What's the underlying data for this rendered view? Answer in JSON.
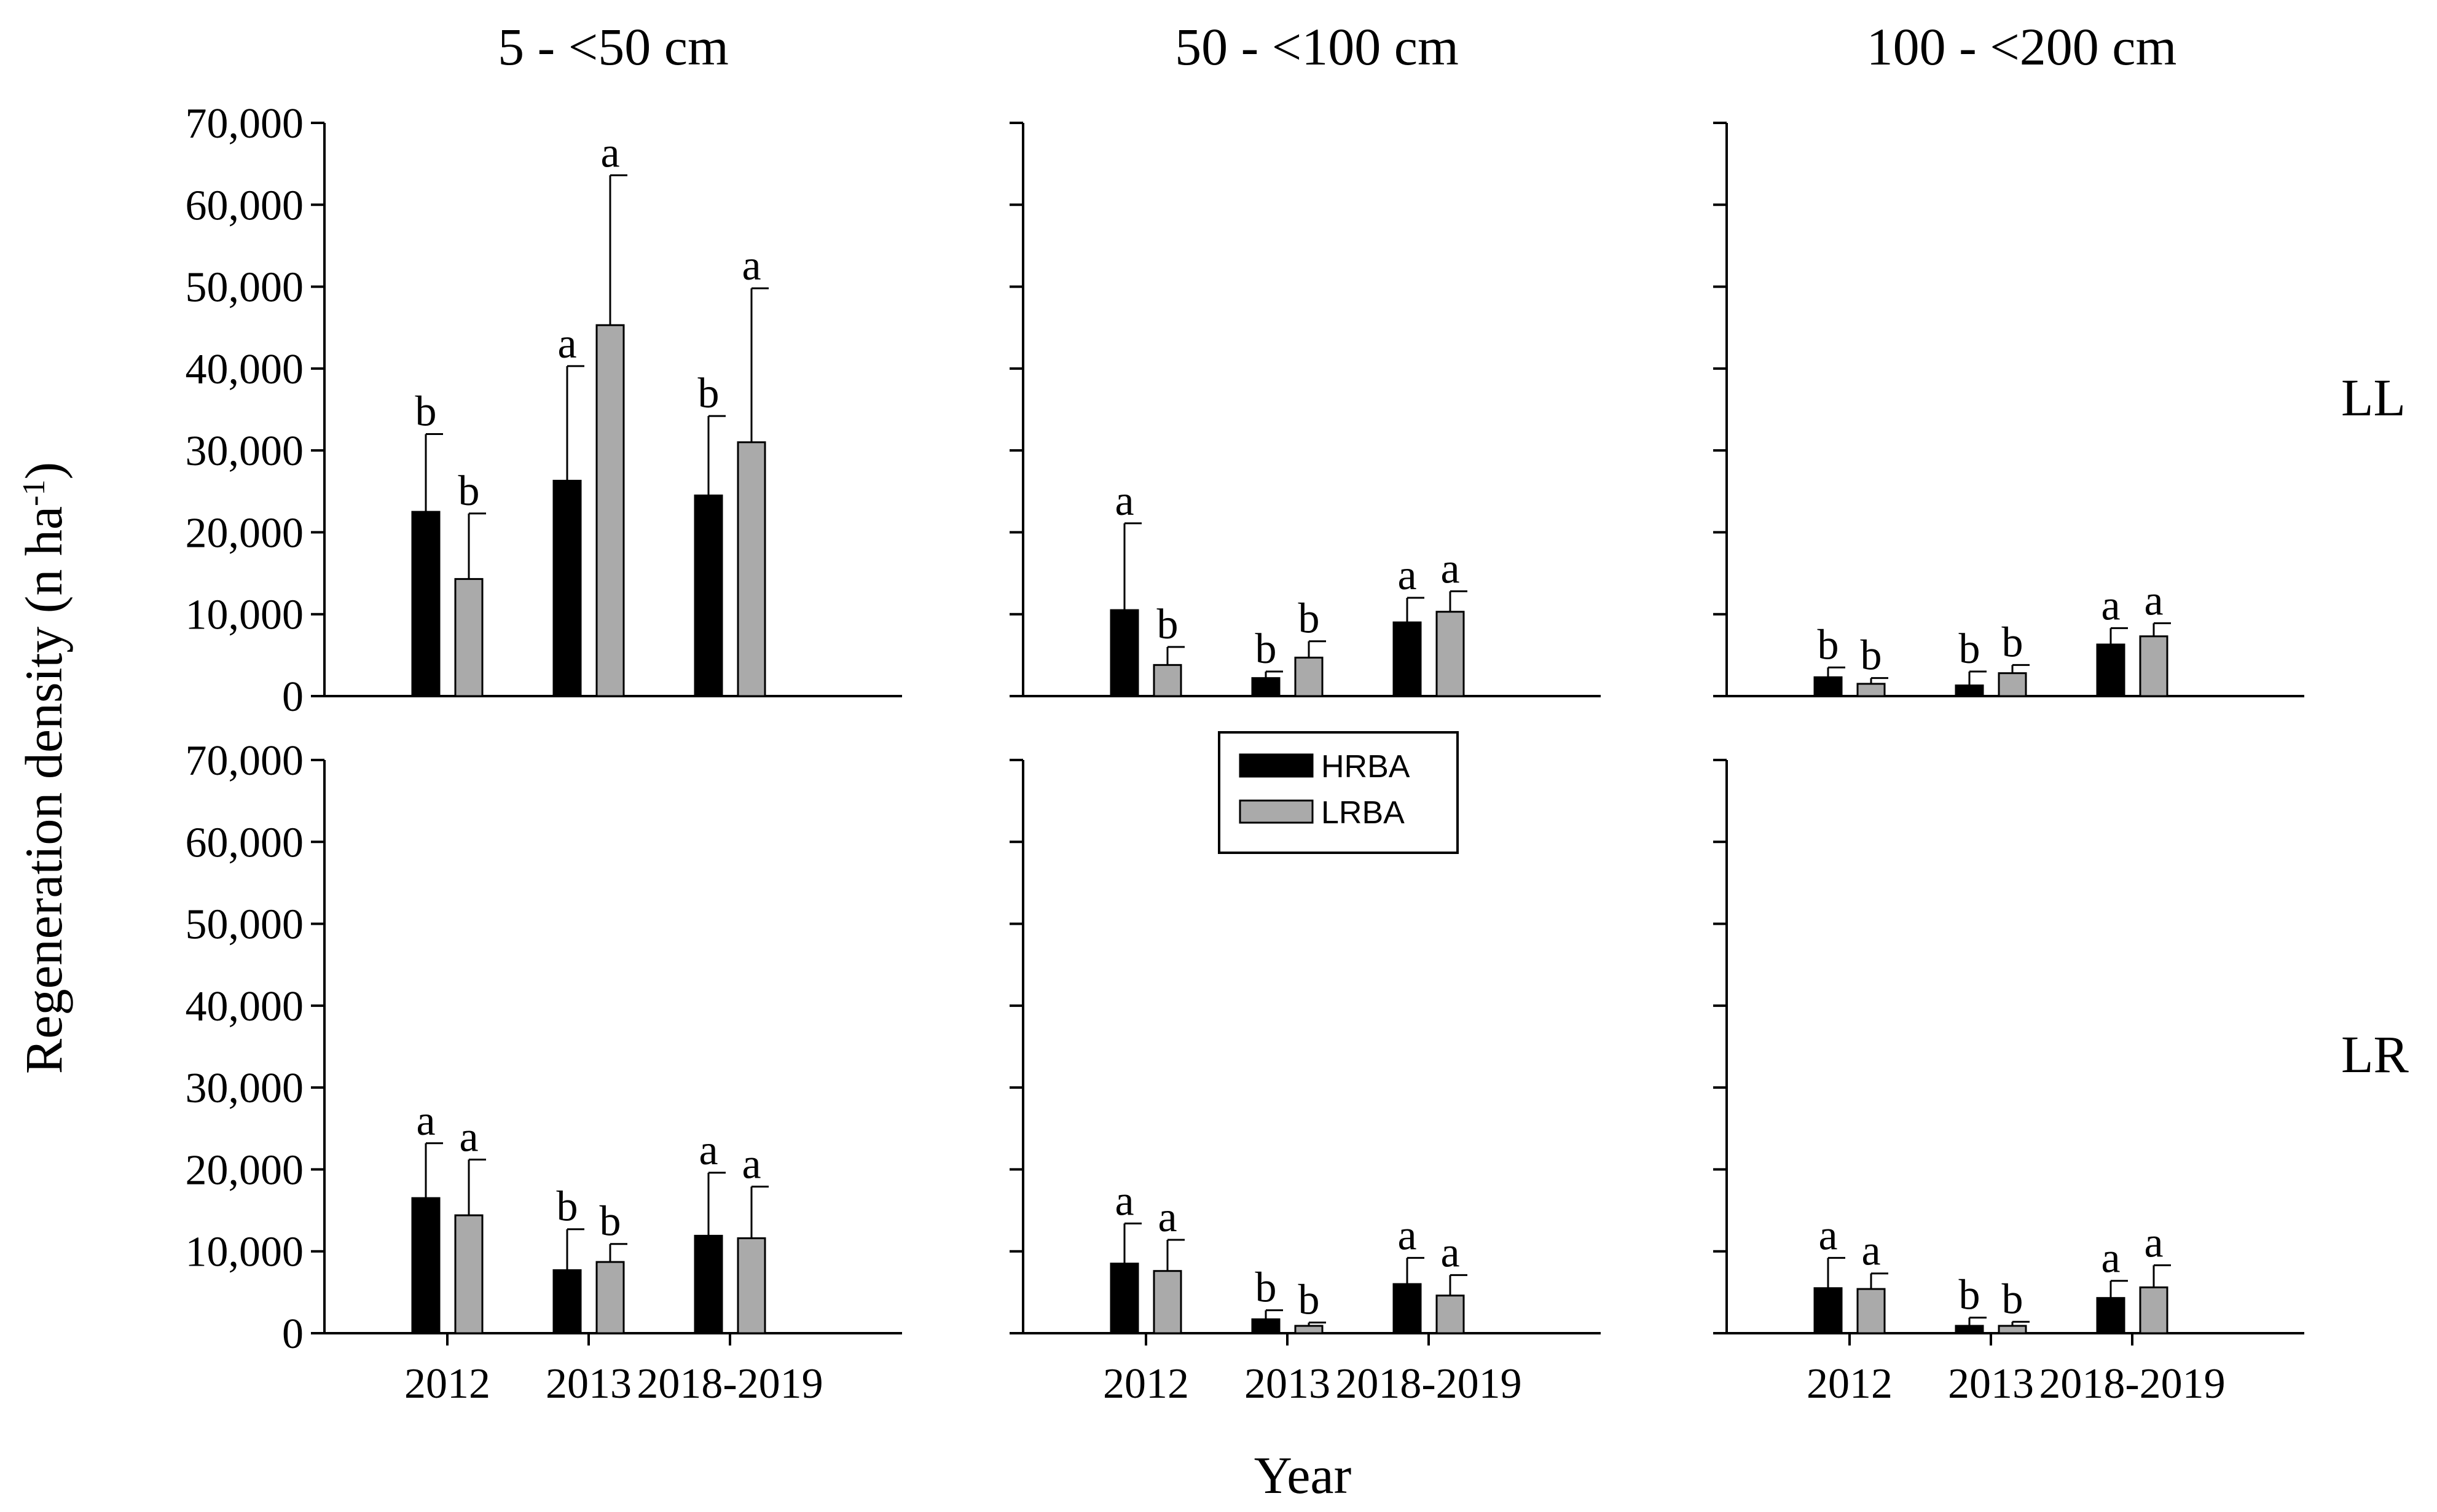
{
  "chart_data": {
    "type": "bar",
    "y_axis_label": "Regeneration density (n ha",
    "y_axis_label_sup": "-1",
    "y_axis_label_end": ")",
    "x_axis_label": "Year",
    "categories": [
      "2012",
      "2013",
      "2018-2019"
    ],
    "ylim": [
      0,
      70000
    ],
    "y_ticks": [
      "0",
      "10,000",
      "20,000",
      "30,000",
      "40,000",
      "50,000",
      "60,000",
      "70,000"
    ],
    "legend": [
      {
        "name": "HRBA",
        "color": "#000000"
      },
      {
        "name": "LRBA",
        "color": "#aaaaaa"
      }
    ],
    "column_titles": [
      "5 - <50 cm",
      "50 - <100 cm",
      "100 - <200 cm"
    ],
    "row_labels": [
      "LL",
      "LR"
    ],
    "panels": [
      {
        "row": 0,
        "col": 0,
        "title": "5 - <50 cm",
        "row_label": "LL",
        "HRBA": {
          "values": [
            22500,
            26300,
            24500
          ],
          "errors": [
            9500,
            14000,
            9700
          ],
          "letters": [
            "b",
            "a",
            "b"
          ]
        },
        "LRBA": {
          "values": [
            14300,
            45300,
            31000
          ],
          "errors": [
            8000,
            18300,
            18800
          ],
          "letters": [
            "b",
            "a",
            "a"
          ]
        }
      },
      {
        "row": 0,
        "col": 1,
        "title": "50 - <100 cm",
        "row_label": "LL",
        "HRBA": {
          "values": [
            10500,
            2200,
            9000
          ],
          "errors": [
            10600,
            800,
            3000
          ],
          "letters": [
            "a",
            "b",
            "a"
          ]
        },
        "LRBA": {
          "values": [
            3800,
            4700,
            10300
          ],
          "errors": [
            2200,
            2000,
            2500
          ],
          "letters": [
            "b",
            "b",
            "a"
          ]
        }
      },
      {
        "row": 0,
        "col": 2,
        "title": "100 - <200 cm",
        "row_label": "LL",
        "HRBA": {
          "values": [
            2300,
            1300,
            6300
          ],
          "errors": [
            1200,
            1700,
            2000
          ],
          "letters": [
            "b",
            "b",
            "a"
          ]
        },
        "LRBA": {
          "values": [
            1500,
            2800,
            7300
          ],
          "errors": [
            700,
            1000,
            1600
          ],
          "letters": [
            "b",
            "b",
            "a"
          ]
        }
      },
      {
        "row": 1,
        "col": 0,
        "title": "",
        "row_label": "LR",
        "HRBA": {
          "values": [
            16500,
            7700,
            11900
          ],
          "errors": [
            6700,
            5000,
            7700
          ],
          "letters": [
            "a",
            "b",
            "a"
          ]
        },
        "LRBA": {
          "values": [
            14400,
            8700,
            11600
          ],
          "errors": [
            6800,
            2200,
            6300
          ],
          "letters": [
            "a",
            "b",
            "a"
          ]
        }
      },
      {
        "row": 1,
        "col": 1,
        "title": "",
        "row_label": "LR",
        "HRBA": {
          "values": [
            8500,
            1700,
            6000
          ],
          "errors": [
            4900,
            1100,
            3200
          ],
          "letters": [
            "a",
            "b",
            "a"
          ]
        },
        "LRBA": {
          "values": [
            7600,
            900,
            4600
          ],
          "errors": [
            3800,
            400,
            2500
          ],
          "letters": [
            "a",
            "b",
            "a"
          ]
        }
      },
      {
        "row": 1,
        "col": 2,
        "title": "",
        "row_label": "LR",
        "HRBA": {
          "values": [
            5500,
            900,
            4300
          ],
          "errors": [
            3700,
            1000,
            2100
          ],
          "letters": [
            "a",
            "b",
            "a"
          ]
        },
        "LRBA": {
          "values": [
            5400,
            900,
            5600
          ],
          "errors": [
            1900,
            500,
            2700
          ],
          "letters": [
            "a",
            "b",
            "a"
          ]
        }
      }
    ]
  }
}
